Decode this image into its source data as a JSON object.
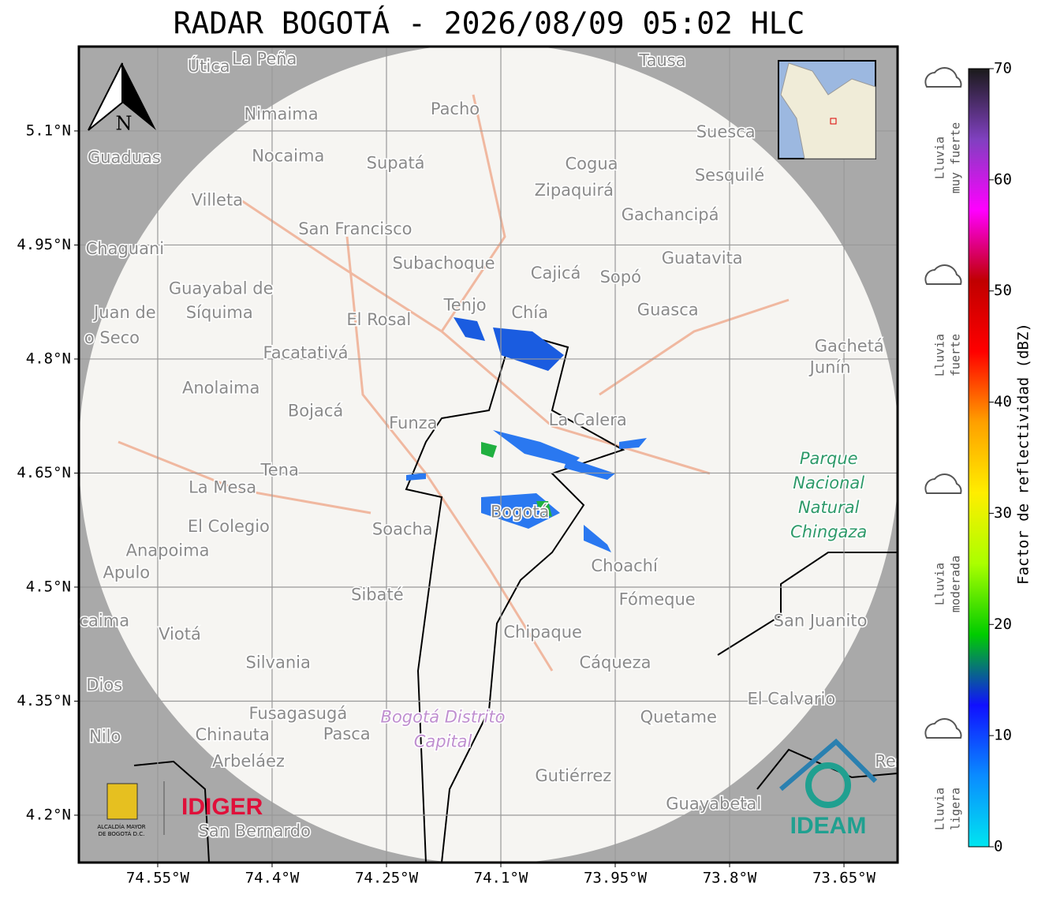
{
  "map": {
    "title": "RADAR BOGOTÁ - 2026/08/09 05:02 HLC",
    "north": "N",
    "lonlim": [
      -74.6534,
      -73.5797
    ],
    "latlim": [
      4.1377,
      5.211
    ],
    "lon_ticks": [
      {
        "value": -74.55,
        "label": "74.55°W"
      },
      {
        "value": -74.4,
        "label": "74.4°W"
      },
      {
        "value": -74.25,
        "label": "74.25°W"
      },
      {
        "value": -74.1,
        "label": "74.1°W"
      },
      {
        "value": -73.95,
        "label": "73.95°W"
      },
      {
        "value": -73.8,
        "label": "73.8°W"
      },
      {
        "value": -73.65,
        "label": "73.65°W"
      }
    ],
    "lat_ticks": [
      {
        "value": 5.1,
        "label": "5.1°N"
      },
      {
        "value": 4.95,
        "label": "4.95°N"
      },
      {
        "value": 4.8,
        "label": "4.8°N"
      },
      {
        "value": 4.65,
        "label": "4.65°N"
      },
      {
        "value": 4.5,
        "label": "4.5°N"
      },
      {
        "value": 4.35,
        "label": "4.35°N"
      },
      {
        "value": 4.2,
        "label": "4.2°N"
      }
    ],
    "places": [
      {
        "name": "Útica",
        "lon": -74.483,
        "lat": 5.184
      },
      {
        "name": "La Peña",
        "lon": -74.41,
        "lat": 5.194
      },
      {
        "name": "Tausa",
        "lon": -73.888,
        "lat": 5.192
      },
      {
        "name": "Pacho",
        "lon": -74.16,
        "lat": 5.128
      },
      {
        "name": "Nimaima",
        "lon": -74.388,
        "lat": 5.121
      },
      {
        "name": "Guaduas",
        "lon": -74.594,
        "lat": 5.064
      },
      {
        "name": "Nocaima",
        "lon": -74.379,
        "lat": 5.066
      },
      {
        "name": "Supatá",
        "lon": -74.238,
        "lat": 5.057
      },
      {
        "name": "Cogua",
        "lon": -73.981,
        "lat": 5.056
      },
      {
        "name": "Suesca",
        "lon": -73.805,
        "lat": 5.098
      },
      {
        "name": "Sesquilé",
        "lon": -73.8,
        "lat": 5.041
      },
      {
        "name": "Zipaquirá",
        "lon": -74.004,
        "lat": 5.021
      },
      {
        "name": "Villeta",
        "lon": -74.472,
        "lat": 5.008
      },
      {
        "name": "Gachancipá",
        "lon": -73.878,
        "lat": 4.989
      },
      {
        "name": "San Francisco",
        "lon": -74.291,
        "lat": 4.97
      },
      {
        "name": "Chaguani",
        "lon": -74.593,
        "lat": 4.944
      },
      {
        "name": "Guatavita",
        "lon": -73.836,
        "lat": 4.932
      },
      {
        "name": "Subachoque",
        "lon": -74.175,
        "lat": 4.925
      },
      {
        "name": "Cajicá",
        "lon": -74.028,
        "lat": 4.912
      },
      {
        "name": "Sopó",
        "lon": -73.943,
        "lat": 4.907
      },
      {
        "name": "Guayabal de",
        "lon": -74.467,
        "lat": 4.892
      },
      {
        "name": "Síquima",
        "lon": -74.469,
        "lat": 4.86
      },
      {
        "name": "Juan de",
        "lon": -74.593,
        "lat": 4.86
      },
      {
        "name": "o Seco",
        "lon": -74.61,
        "lat": 4.827
      },
      {
        "name": "Tenjo",
        "lon": -74.147,
        "lat": 4.87
      },
      {
        "name": "Chía",
        "lon": -74.062,
        "lat": 4.86
      },
      {
        "name": "Guasca",
        "lon": -73.881,
        "lat": 4.864
      },
      {
        "name": "El Rosal",
        "lon": -74.26,
        "lat": 4.851
      },
      {
        "name": "Facatativá",
        "lon": -74.356,
        "lat": 4.807
      },
      {
        "name": "Gachetá",
        "lon": -73.643,
        "lat": 4.816
      },
      {
        "name": "Junín",
        "lon": -73.668,
        "lat": 4.788
      },
      {
        "name": "Anolaima",
        "lon": -74.467,
        "lat": 4.761
      },
      {
        "name": "Bojacá",
        "lon": -74.343,
        "lat": 4.731
      },
      {
        "name": "Funza",
        "lon": -74.215,
        "lat": 4.715
      },
      {
        "name": "La Calera",
        "lon": -73.986,
        "lat": 4.719
      },
      {
        "name": "Tena",
        "lon": -74.39,
        "lat": 4.653
      },
      {
        "name": "La Mesa",
        "lon": -74.465,
        "lat": 4.63
      },
      {
        "name": "El Colegio",
        "lon": -74.457,
        "lat": 4.579
      },
      {
        "name": "Soacha",
        "lon": -74.229,
        "lat": 4.575
      },
      {
        "name": "Bogotá",
        "lon": -74.075,
        "lat": 4.598
      },
      {
        "name": "Anapoima",
        "lon": -74.537,
        "lat": 4.547
      },
      {
        "name": "Apulo",
        "lon": -74.591,
        "lat": 4.518
      },
      {
        "name": "Choachí",
        "lon": -73.938,
        "lat": 4.527
      },
      {
        "name": "Fómeque",
        "lon": -73.895,
        "lat": 4.483
      },
      {
        "name": "Sibaté",
        "lon": -74.262,
        "lat": 4.489
      },
      {
        "name": "San Juanito",
        "lon": -73.681,
        "lat": 4.455
      },
      {
        "name": "caima",
        "lon": -74.62,
        "lat": 4.455
      },
      {
        "name": "Viotá",
        "lon": -74.521,
        "lat": 4.437
      },
      {
        "name": "Chipaque",
        "lon": -74.045,
        "lat": 4.44
      },
      {
        "name": "Silvania",
        "lon": -74.392,
        "lat": 4.4
      },
      {
        "name": "Cáqueza",
        "lon": -73.95,
        "lat": 4.4
      },
      {
        "name": "Dios",
        "lon": -74.62,
        "lat": 4.37
      },
      {
        "name": "El Calvario",
        "lon": -73.719,
        "lat": 4.352
      },
      {
        "name": "Quetame",
        "lon": -73.867,
        "lat": 4.328
      },
      {
        "name": "Fusagasugá",
        "lon": -74.366,
        "lat": 4.333
      },
      {
        "name": "Nilo",
        "lon": -74.619,
        "lat": 4.303
      },
      {
        "name": "Chinauta",
        "lon": -74.452,
        "lat": 4.305
      },
      {
        "name": "Pasca",
        "lon": -74.302,
        "lat": 4.306
      },
      {
        "name": "Arbeláez",
        "lon": -74.431,
        "lat": 4.27
      },
      {
        "name": "Gutiérrez",
        "lon": -74.005,
        "lat": 4.251
      },
      {
        "name": "Guayabetal",
        "lon": -73.821,
        "lat": 4.214
      },
      {
        "name": "San Bernardo",
        "lon": -74.423,
        "lat": 4.178
      },
      {
        "name": "Res",
        "lon": -73.59,
        "lat": 4.27
      }
    ],
    "areas": [
      {
        "lines": [
          "Parque",
          "Nacional",
          "Natural",
          "Chingaza"
        ],
        "lon": -73.67,
        "lat": 4.62,
        "color": "#2e9a6a"
      },
      {
        "lines": [
          "Bogotá Distrito",
          "Capital"
        ],
        "lon": -74.176,
        "lat": 4.312,
        "color": "#c090d0"
      }
    ],
    "logos": {
      "idiger": "IDIGER",
      "ideam": "IDEAM",
      "alcaldia": [
        "ALCALDÍA MAYOR",
        "DE BOGOTÁ D.C."
      ]
    },
    "colorbar": {
      "label": "Factor de reflectividad (dBZ)",
      "lim": [
        0,
        70
      ],
      "ticks": [
        0,
        10,
        20,
        30,
        40,
        50,
        60,
        70
      ],
      "colors": [
        "#00e5f0",
        "#0a8cff",
        "#1010ff",
        "#00cc00",
        "#aaff00",
        "#ffee00",
        "#ffa000",
        "#ff0000",
        "#c00000",
        "#ff00ff",
        "#8040c0",
        "#1a1a1a"
      ]
    },
    "rain_levels": [
      {
        "lines": [
          "Lluvia",
          "muy fuerte"
        ]
      },
      {
        "lines": [
          "Lluvia",
          "fuerte"
        ]
      },
      {
        "lines": [
          "Lluvia",
          "moderada"
        ]
      },
      {
        "lines": [
          "Lluvia",
          "ligera"
        ]
      }
    ]
  }
}
